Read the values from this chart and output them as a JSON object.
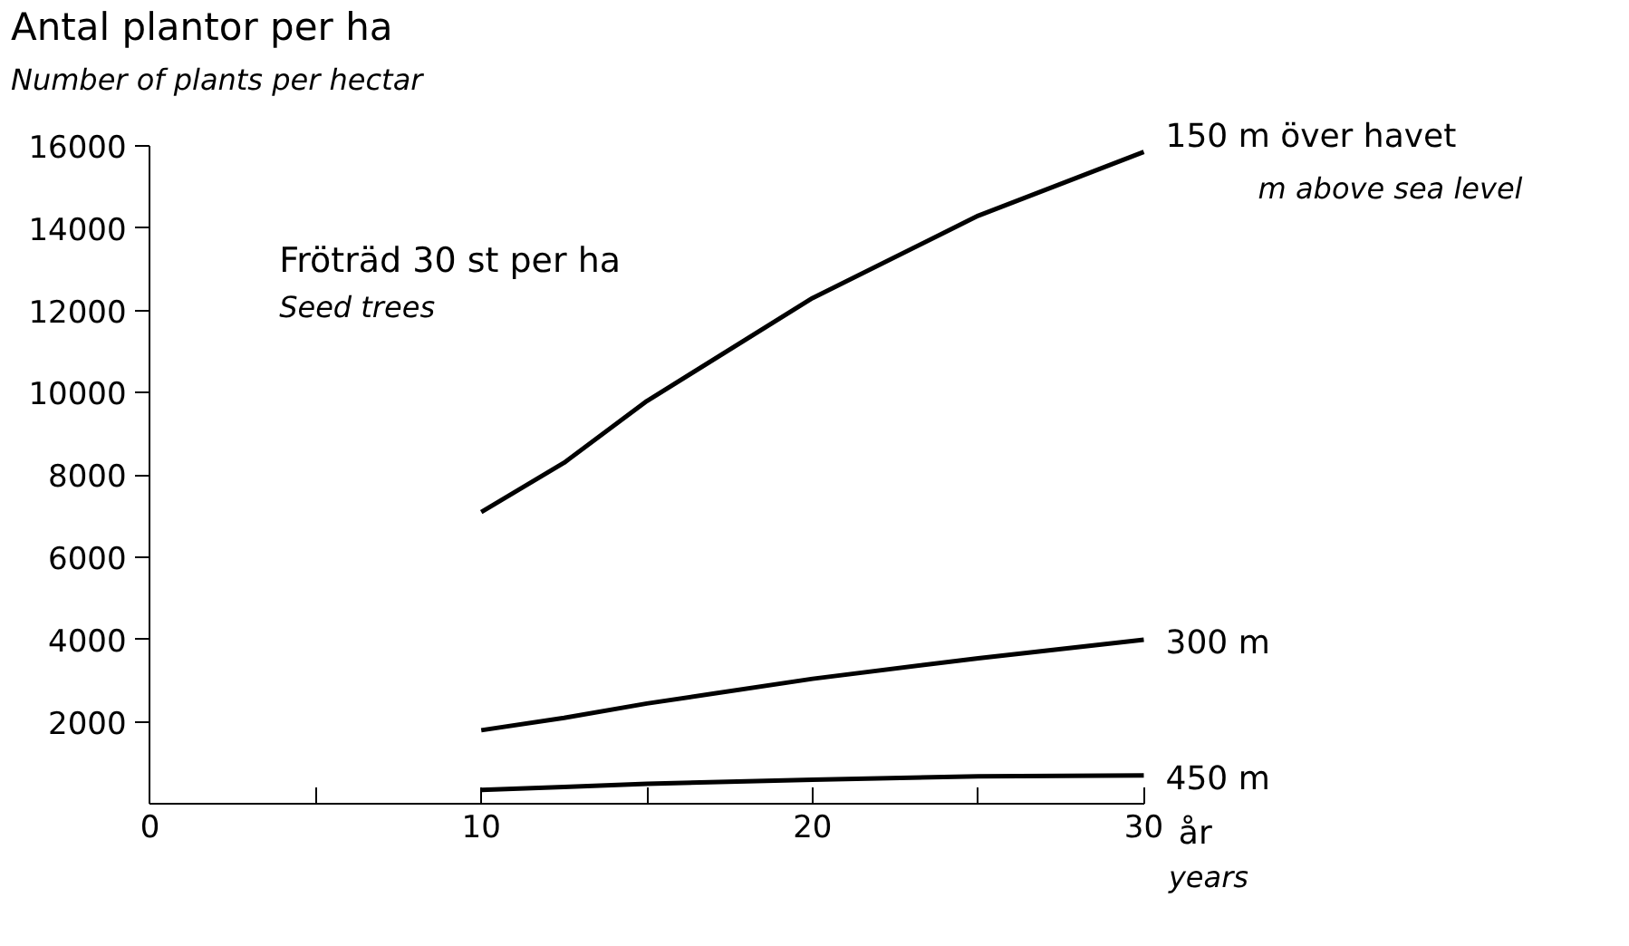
{
  "chart_data": {
    "type": "line",
    "ylabel": "Antal plantor per ha",
    "xlabel": "år",
    "x": [
      10,
      12.5,
      15,
      20,
      25,
      30
    ],
    "series": [
      {
        "name": "150 m över havet",
        "color": "#000000",
        "values": [
          7100,
          8300,
          9800,
          12300,
          14300,
          15850
        ]
      },
      {
        "name": "300 m",
        "color": "#000000",
        "values": [
          1800,
          2100,
          2450,
          3050,
          3550,
          4000
        ]
      },
      {
        "name": "450 m",
        "color": "#000000",
        "values": [
          350,
          420,
          500,
          600,
          680,
          700
        ]
      }
    ],
    "annotations": [
      "Number of plants per hectar",
      "years",
      "m above sea level",
      "Fröträd 30 st per ha",
      "Seed trees"
    ],
    "xlim": [
      0,
      30
    ],
    "ylim": [
      0,
      16000
    ],
    "xticks": [
      0,
      {
        "value": 5,
        "label": null
      },
      10,
      {
        "value": 15,
        "label": null
      },
      20,
      {
        "value": 25,
        "label": null
      },
      30
    ],
    "yticks": [
      2000,
      4000,
      6000,
      8000,
      10000,
      12000,
      14000,
      16000
    ],
    "grid": false,
    "marker": "none",
    "line_style": "solid"
  }
}
